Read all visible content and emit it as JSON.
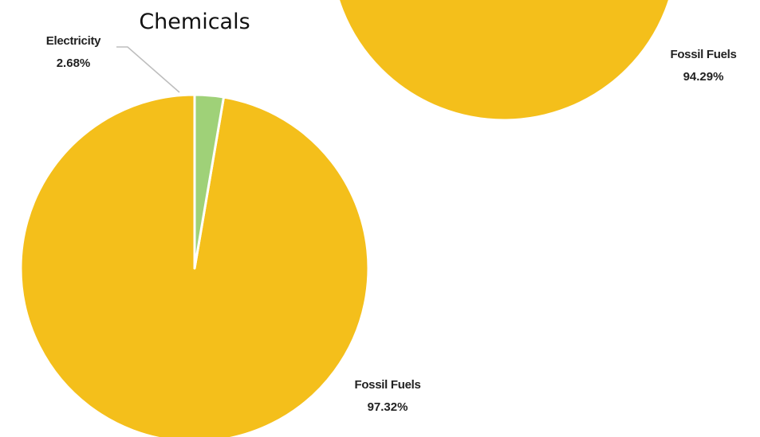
{
  "colors": {
    "fossil_fuels": "#f4bf1b",
    "electricity": "#9fd178",
    "slice_border": "#ffffff",
    "leader_line": "#bdbdbd"
  },
  "chart_data": [
    {
      "type": "pie",
      "title": "",
      "slices": [
        {
          "name": "Fossil Fuels",
          "value": 94.29,
          "label": "94.29%"
        }
      ]
    },
    {
      "type": "pie",
      "title": "Chemicals",
      "slices": [
        {
          "name": "Fossil Fuels",
          "value": 97.32,
          "label": "97.32%"
        },
        {
          "name": "Electricity",
          "value": 2.68,
          "label": "2.68%"
        }
      ]
    }
  ]
}
